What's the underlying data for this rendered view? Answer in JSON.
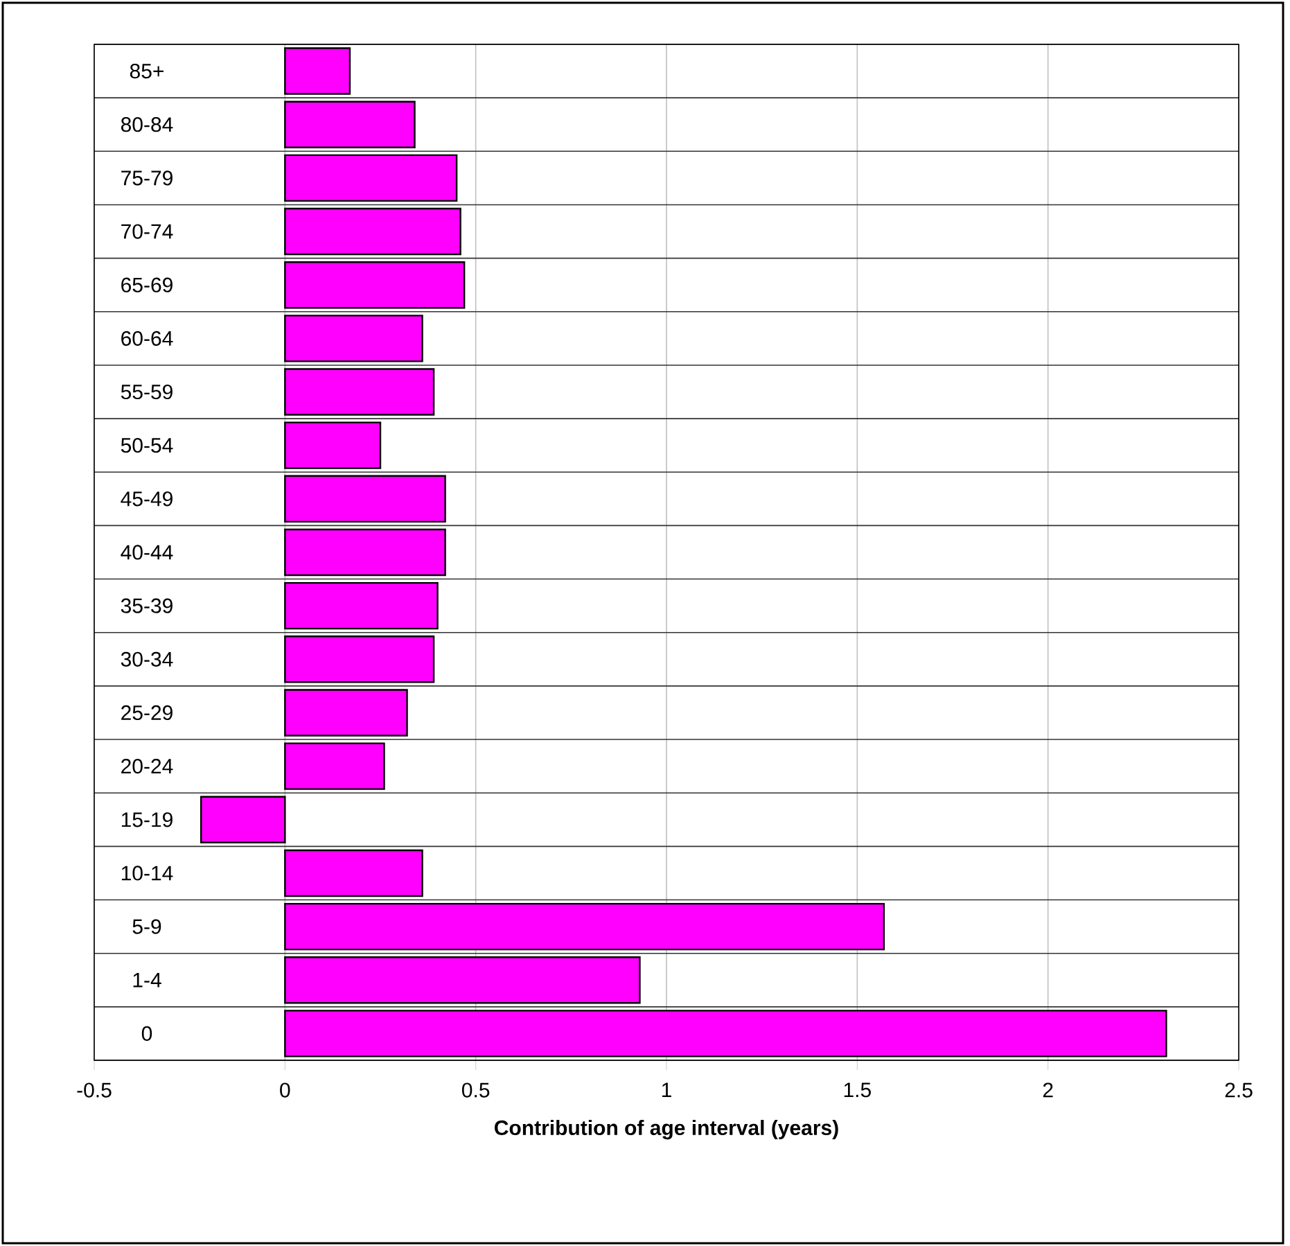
{
  "chart_data": {
    "type": "bar",
    "orientation": "horizontal",
    "xlabel": "Contribution of age interval (years)",
    "categories": [
      "85+",
      "80-84",
      "75-79",
      "70-74",
      "65-69",
      "60-64",
      "55-59",
      "50-54",
      "45-49",
      "40-44",
      "35-39",
      "30-34",
      "25-29",
      "20-24",
      "15-19",
      "10-14",
      "5-9",
      "1-4",
      "0"
    ],
    "values": [
      0.17,
      0.34,
      0.45,
      0.46,
      0.47,
      0.36,
      0.39,
      0.25,
      0.42,
      0.42,
      0.4,
      0.39,
      0.32,
      0.26,
      -0.22,
      0.36,
      1.57,
      0.93,
      2.31
    ],
    "color": "#ff00ff",
    "xlim": [
      -0.5,
      2.5
    ],
    "xticks": [
      -0.5,
      0,
      0.5,
      1,
      1.5,
      2,
      2.5
    ],
    "grid": true
  }
}
